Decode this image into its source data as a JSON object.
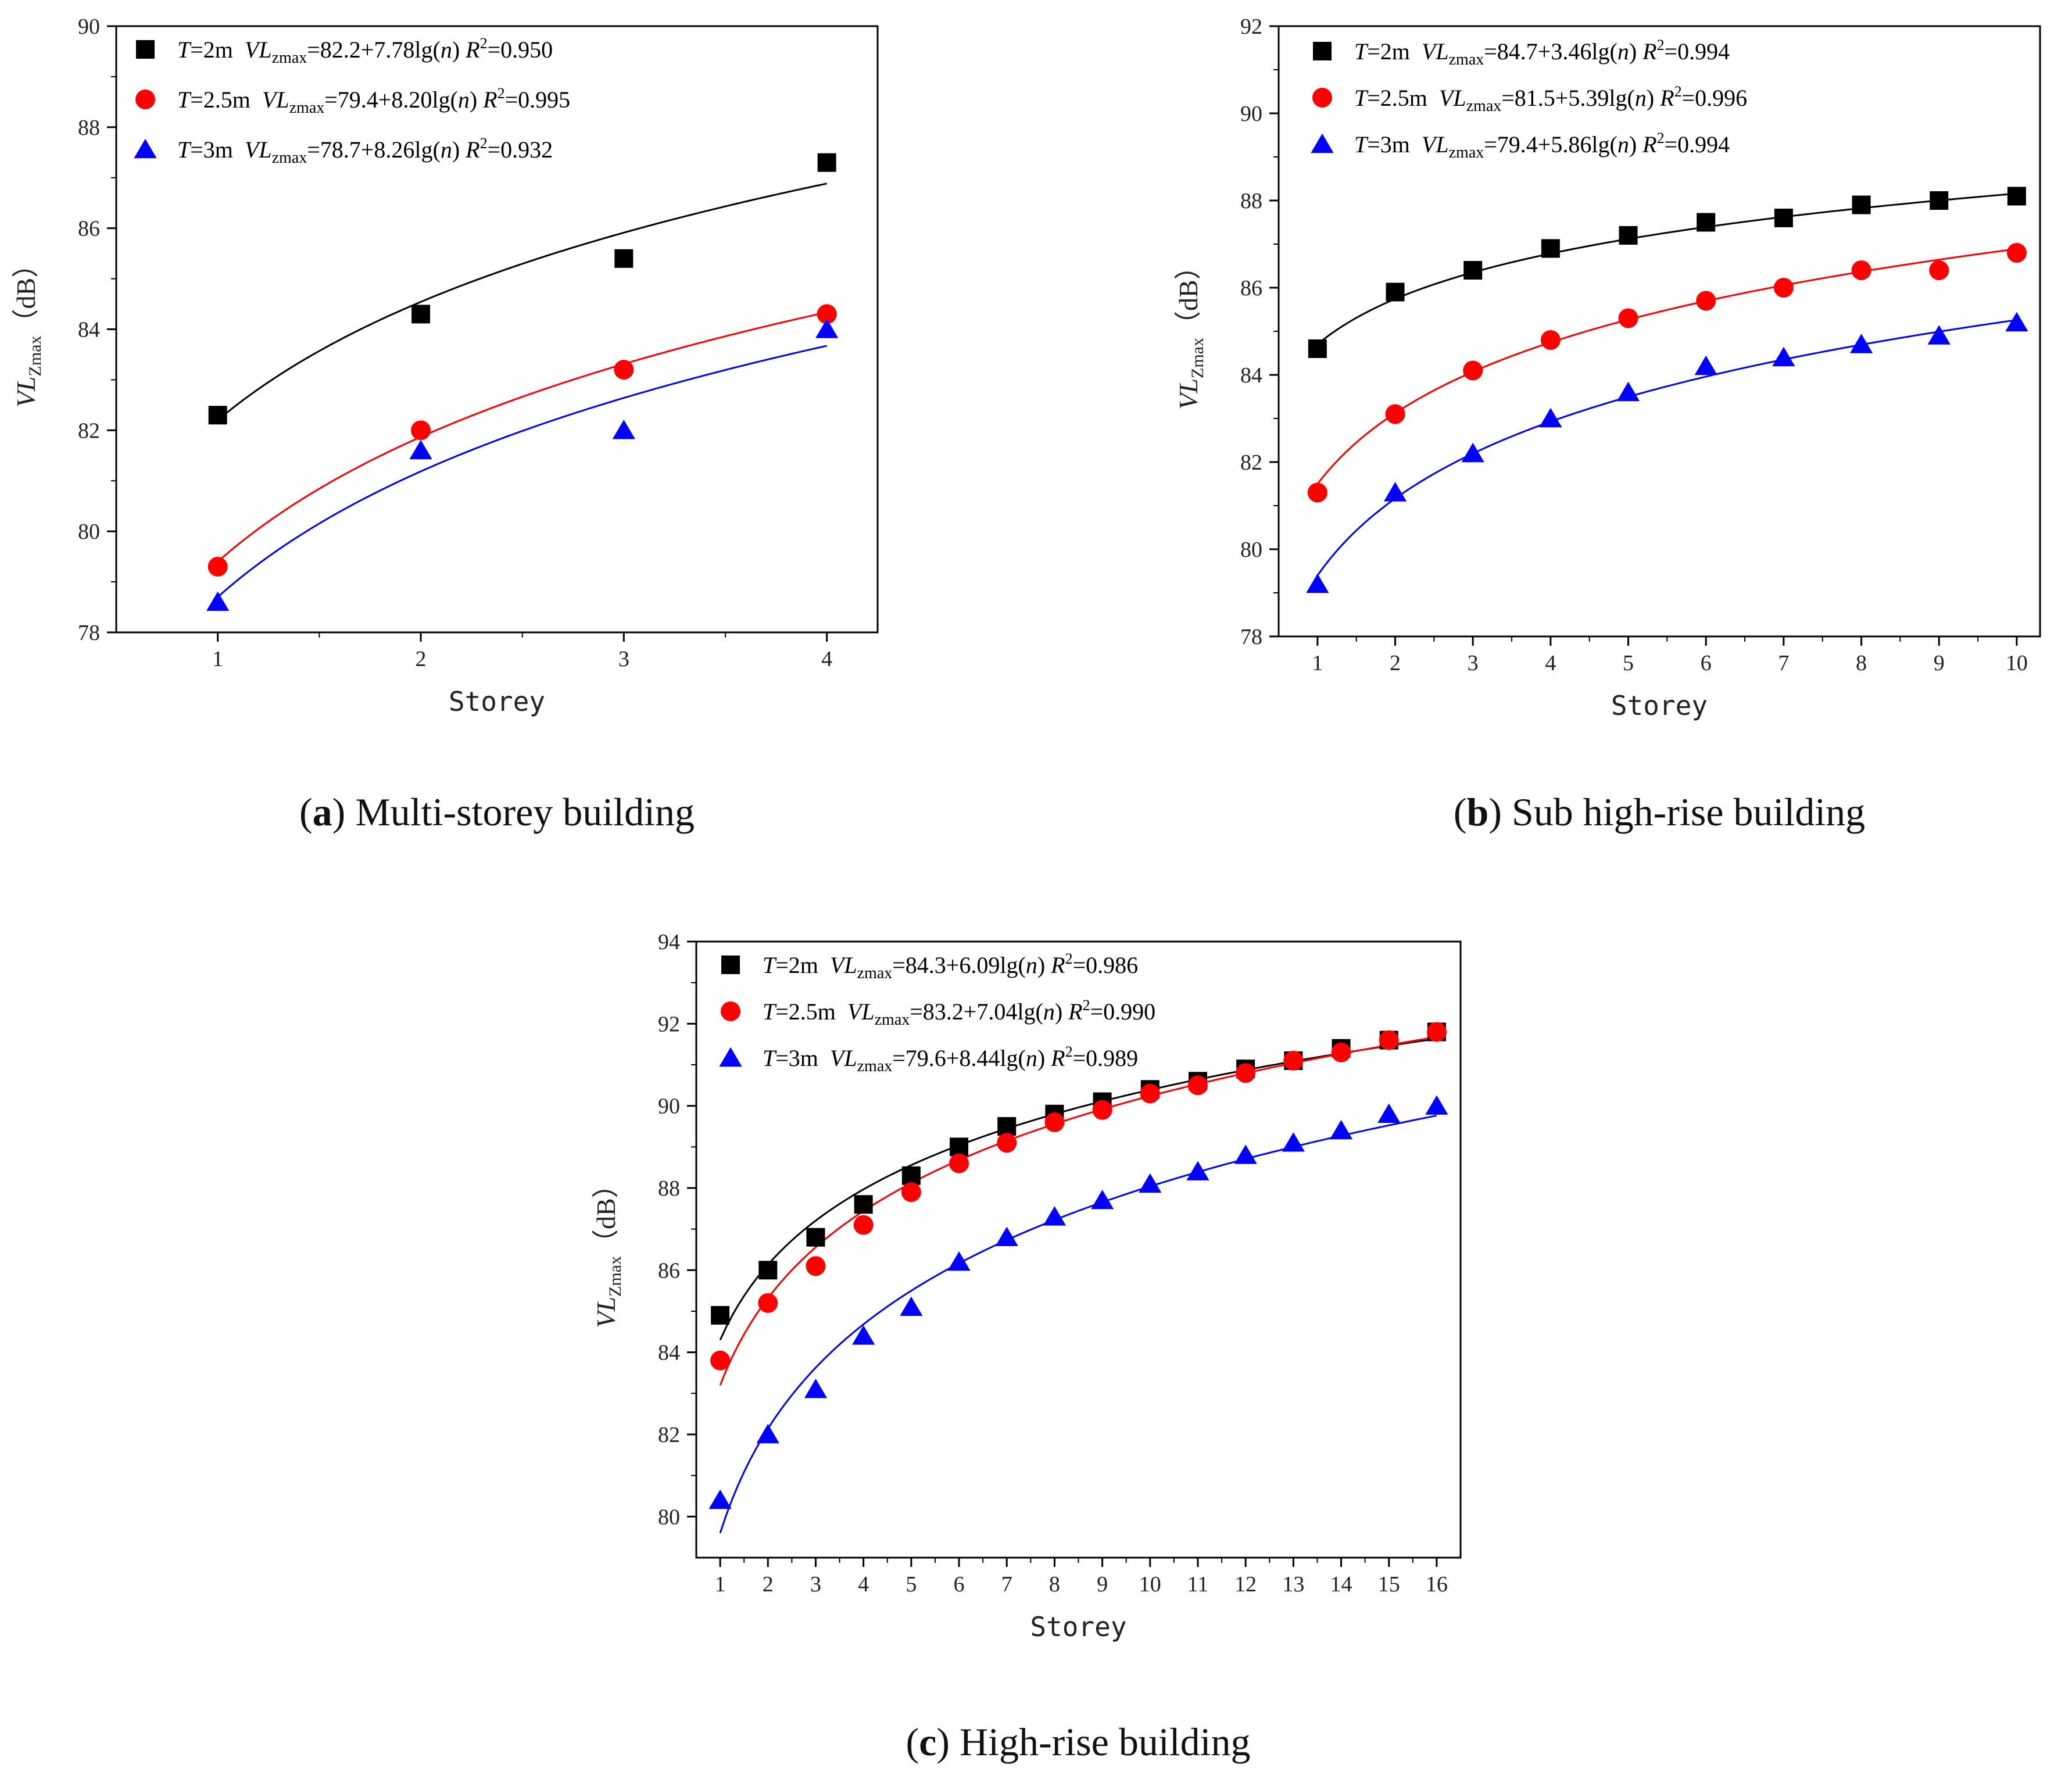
{
  "colors": {
    "T2": "#000000",
    "T25": "#ff0000",
    "T3": "#0000ff"
  },
  "chart_data": [
    {
      "id": "a",
      "type": "scatter",
      "caption_letter": "a",
      "caption_text": " Multi-storey building",
      "xlabel": "Storey",
      "ylabel_var": "VL",
      "ylabel_sub": "Zmax",
      "ylabel_unit": "（dB）",
      "xlim": [
        0.5,
        4.25
      ],
      "ylim": [
        78,
        90
      ],
      "xticks": [
        1,
        2,
        3,
        4
      ],
      "yticks": [
        78,
        80,
        82,
        84,
        86,
        88,
        90
      ],
      "x": [
        1,
        2,
        3,
        4
      ],
      "legend_position": "top-left",
      "series": [
        {
          "key": "T2",
          "marker": "square",
          "t_value": "=2m",
          "eq": "=82.2+7.78lg(",
          "r2": "=0.950",
          "a": 82.2,
          "b": 7.78,
          "values": [
            82.3,
            84.3,
            85.4,
            87.3
          ]
        },
        {
          "key": "T25",
          "marker": "circle",
          "t_value": "=2.5m",
          "eq": "=79.4+8.20lg(",
          "r2": "=0.995",
          "a": 79.4,
          "b": 8.2,
          "values": [
            79.3,
            82.0,
            83.2,
            84.3
          ]
        },
        {
          "key": "T3",
          "marker": "triangle",
          "t_value": "=3m",
          "eq": "=78.7+8.26lg(",
          "r2": "=0.932",
          "a": 78.7,
          "b": 8.26,
          "values": [
            78.6,
            81.6,
            82.0,
            84.0
          ]
        }
      ]
    },
    {
      "id": "b",
      "type": "scatter",
      "caption_letter": "b",
      "caption_text": " Sub high-rise building",
      "xlabel": "Storey",
      "ylabel_var": "VL",
      "ylabel_sub": "Zmax",
      "ylabel_unit": "（dB）",
      "xlim": [
        0.5,
        10.3
      ],
      "ylim": [
        78,
        92
      ],
      "xticks": [
        1,
        2,
        3,
        4,
        5,
        6,
        7,
        8,
        9,
        10
      ],
      "yticks": [
        78,
        80,
        82,
        84,
        86,
        88,
        90,
        92
      ],
      "x": [
        1,
        2,
        3,
        4,
        5,
        6,
        7,
        8,
        9,
        10
      ],
      "legend_position": "top-left",
      "series": [
        {
          "key": "T2",
          "marker": "square",
          "t_value": "=2m",
          "eq": "=84.7+3.46lg(",
          "r2": "=0.994",
          "a": 84.7,
          "b": 3.46,
          "values": [
            84.6,
            85.9,
            86.4,
            86.9,
            87.2,
            87.5,
            87.6,
            87.9,
            88.0,
            88.1
          ]
        },
        {
          "key": "T25",
          "marker": "circle",
          "t_value": "=2.5m",
          "eq": "=81.5+5.39lg(",
          "r2": "=0.996",
          "a": 81.5,
          "b": 5.39,
          "values": [
            81.3,
            83.1,
            84.1,
            84.8,
            85.3,
            85.7,
            86.0,
            86.4,
            86.4,
            86.8
          ]
        },
        {
          "key": "T3",
          "marker": "triangle",
          "t_value": "=3m",
          "eq": "=79.4+5.86lg(",
          "r2": "=0.994",
          "a": 79.4,
          "b": 5.86,
          "values": [
            79.2,
            81.3,
            82.2,
            83.0,
            83.6,
            84.2,
            84.4,
            84.7,
            84.9,
            85.2
          ]
        }
      ]
    },
    {
      "id": "c",
      "type": "scatter",
      "caption_letter": "c",
      "caption_text": " High-rise building",
      "xlabel": "Storey",
      "ylabel_var": "VL",
      "ylabel_sub": "Zmax",
      "ylabel_unit": "（dB）",
      "xlim": [
        0.5,
        16.5
      ],
      "ylim": [
        79,
        94
      ],
      "xticks": [
        1,
        2,
        3,
        4,
        5,
        6,
        7,
        8,
        9,
        10,
        11,
        12,
        13,
        14,
        15,
        16
      ],
      "yticks": [
        80,
        82,
        84,
        86,
        88,
        90,
        92,
        94
      ],
      "x": [
        1,
        2,
        3,
        4,
        5,
        6,
        7,
        8,
        9,
        10,
        11,
        12,
        13,
        14,
        15,
        16
      ],
      "legend_position": "top-left",
      "series": [
        {
          "key": "T2",
          "marker": "square",
          "t_value": "=2m",
          "eq": "=84.3+6.09lg(",
          "r2": "=0.986",
          "a": 84.3,
          "b": 6.09,
          "values": [
            84.9,
            86.0,
            86.8,
            87.6,
            88.3,
            89.0,
            89.5,
            89.8,
            90.1,
            90.4,
            90.6,
            90.9,
            91.1,
            91.4,
            91.6,
            91.8
          ]
        },
        {
          "key": "T25",
          "marker": "circle",
          "t_value": "=2.5m",
          "eq": "=83.2+7.04lg(",
          "r2": "=0.990",
          "a": 83.2,
          "b": 7.04,
          "values": [
            83.8,
            85.2,
            86.1,
            87.1,
            87.9,
            88.6,
            89.1,
            89.6,
            89.9,
            90.3,
            90.5,
            90.8,
            91.1,
            91.3,
            91.6,
            91.8
          ]
        },
        {
          "key": "T3",
          "marker": "triangle",
          "t_value": "=3m",
          "eq": "=79.6+8.44lg(",
          "r2": "=0.989",
          "a": 79.6,
          "b": 8.44,
          "values": [
            80.4,
            82.0,
            83.1,
            84.4,
            85.1,
            86.2,
            86.8,
            87.3,
            87.7,
            88.1,
            88.4,
            88.8,
            89.1,
            89.4,
            89.8,
            90.0
          ]
        }
      ]
    }
  ],
  "legend_labels": {
    "t_symbol": "T",
    "vl_symbol": "VL",
    "vl_sub": "zmax",
    "n_symbol": "n",
    "n_close": ")",
    "r_symbol": "R",
    "r_sup": "2"
  }
}
